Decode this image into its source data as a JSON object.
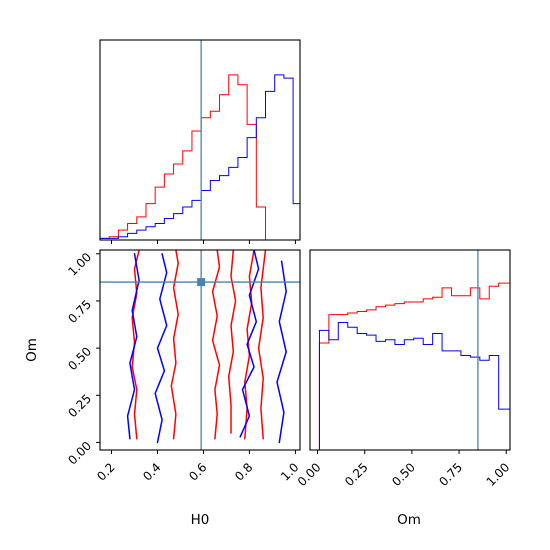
{
  "chart_data": {
    "type": "corner",
    "parameters": [
      "H0",
      "Om"
    ],
    "axis_labels": {
      "x_bottom_left": "H0",
      "x_bottom_right": "Om",
      "y_left": "Om"
    },
    "ranges": {
      "H0": [
        0.15,
        1.02
      ],
      "Om": [
        -0.04,
        1.02
      ]
    },
    "ticks": {
      "H0": [
        "0.2",
        "0.4",
        "0.6",
        "0.8",
        "1.0"
      ],
      "Om": [
        "0.00",
        "0.25",
        "0.50",
        "0.75",
        "1.00"
      ]
    },
    "truth": {
      "H0": 0.59,
      "Om": 0.85
    },
    "colors": {
      "series_a": "#ff0000",
      "series_b": "#0000ff",
      "truth": "#4682b4"
    },
    "series": [
      {
        "color": "#ff0000",
        "hist_H0": {
          "edges": [
            0.15,
            0.19,
            0.23,
            0.27,
            0.31,
            0.35,
            0.39,
            0.43,
            0.47,
            0.51,
            0.55,
            0.59,
            0.63,
            0.67,
            0.71,
            0.75,
            0.79,
            0.83,
            0.87,
            0.91,
            0.95,
            0.99,
            1.02
          ],
          "counts": [
            0.01,
            0.02,
            0.06,
            0.1,
            0.14,
            0.22,
            0.32,
            0.4,
            0.46,
            0.54,
            0.66,
            0.74,
            0.78,
            0.88,
            1.0,
            0.94,
            0.7,
            0.2,
            0.0,
            0.0,
            0.0,
            0.0
          ]
        },
        "hist_Om": {
          "edges": [
            -0.04,
            0.01,
            0.06,
            0.11,
            0.16,
            0.21,
            0.26,
            0.31,
            0.36,
            0.41,
            0.46,
            0.51,
            0.56,
            0.61,
            0.66,
            0.71,
            0.76,
            0.81,
            0.86,
            0.91,
            0.96,
            1.02
          ],
          "counts": [
            0.0,
            0.68,
            0.86,
            0.86,
            0.87,
            0.88,
            0.89,
            0.91,
            0.92,
            0.93,
            0.94,
            0.94,
            0.96,
            0.97,
            1.03,
            0.98,
            0.98,
            1.03,
            0.96,
            1.04,
            1.06
          ]
        }
      },
      {
        "color": "#0000ff",
        "hist_H0": {
          "edges": [
            0.15,
            0.19,
            0.23,
            0.27,
            0.31,
            0.35,
            0.39,
            0.43,
            0.47,
            0.51,
            0.55,
            0.59,
            0.63,
            0.67,
            0.71,
            0.75,
            0.79,
            0.83,
            0.87,
            0.91,
            0.95,
            0.99,
            1.02
          ],
          "counts": [
            0.01,
            0.01,
            0.02,
            0.04,
            0.06,
            0.08,
            0.1,
            0.13,
            0.16,
            0.2,
            0.24,
            0.3,
            0.36,
            0.39,
            0.44,
            0.5,
            0.62,
            0.74,
            0.9,
            1.0,
            0.98,
            0.22
          ]
        },
        "hist_Om": {
          "edges": [
            -0.04,
            0.01,
            0.06,
            0.11,
            0.16,
            0.21,
            0.26,
            0.31,
            0.36,
            0.41,
            0.46,
            0.51,
            0.56,
            0.61,
            0.66,
            0.71,
            0.76,
            0.81,
            0.86,
            0.91,
            0.96,
            1.02
          ],
          "counts": [
            0.0,
            0.76,
            0.7,
            0.81,
            0.78,
            0.74,
            0.73,
            0.69,
            0.7,
            0.67,
            0.7,
            0.71,
            0.67,
            0.74,
            0.63,
            0.63,
            0.6,
            0.59,
            0.57,
            0.6,
            0.26
          ]
        }
      }
    ],
    "contours": [
      {
        "color": "#ff0000",
        "points": [
          [
            0.31,
            0.02
          ],
          [
            0.3,
            0.15
          ],
          [
            0.31,
            0.28
          ],
          [
            0.29,
            0.4
          ],
          [
            0.3,
            0.53
          ],
          [
            0.29,
            0.66
          ],
          [
            0.31,
            0.79
          ],
          [
            0.3,
            0.92
          ],
          [
            0.32,
            1.02
          ]
        ]
      },
      {
        "color": "#ff0000",
        "points": [
          [
            0.47,
            0.02
          ],
          [
            0.48,
            0.15
          ],
          [
            0.46,
            0.3
          ],
          [
            0.48,
            0.42
          ],
          [
            0.47,
            0.55
          ],
          [
            0.49,
            0.68
          ],
          [
            0.47,
            0.82
          ],
          [
            0.49,
            0.95
          ],
          [
            0.48,
            1.02
          ]
        ]
      },
      {
        "color": "#ff0000",
        "points": [
          [
            0.65,
            0.02
          ],
          [
            0.66,
            0.15
          ],
          [
            0.65,
            0.28
          ],
          [
            0.67,
            0.41
          ],
          [
            0.64,
            0.54
          ],
          [
            0.66,
            0.67
          ],
          [
            0.64,
            0.8
          ],
          [
            0.67,
            0.93
          ],
          [
            0.66,
            1.02
          ]
        ]
      },
      {
        "color": "#ff0000",
        "points": [
          [
            0.72,
            0.05
          ],
          [
            0.72,
            0.2
          ],
          [
            0.71,
            0.35
          ],
          [
            0.73,
            0.48
          ],
          [
            0.72,
            0.62
          ],
          [
            0.74,
            0.75
          ],
          [
            0.72,
            0.88
          ],
          [
            0.73,
            1.02
          ]
        ]
      },
      {
        "color": "#ff0000",
        "points": [
          [
            0.78,
            0.02
          ],
          [
            0.79,
            0.18
          ],
          [
            0.78,
            0.32
          ],
          [
            0.8,
            0.46
          ],
          [
            0.79,
            0.6
          ],
          [
            0.81,
            0.74
          ],
          [
            0.8,
            0.88
          ],
          [
            0.82,
            1.02
          ]
        ]
      },
      {
        "color": "#ff0000",
        "points": [
          [
            0.86,
            0.02
          ],
          [
            0.85,
            0.18
          ],
          [
            0.86,
            0.34
          ],
          [
            0.84,
            0.5
          ],
          [
            0.86,
            0.66
          ],
          [
            0.85,
            0.82
          ],
          [
            0.87,
            1.02
          ]
        ]
      },
      {
        "color": "#0000ff",
        "points": [
          [
            0.28,
            0.02
          ],
          [
            0.27,
            0.14
          ],
          [
            0.3,
            0.28
          ],
          [
            0.28,
            0.42
          ],
          [
            0.31,
            0.56
          ],
          [
            0.29,
            0.7
          ],
          [
            0.32,
            0.86
          ],
          [
            0.3,
            1.0
          ]
        ]
      },
      {
        "color": "#0000ff",
        "points": [
          [
            0.4,
            0.0
          ],
          [
            0.42,
            0.12
          ],
          [
            0.39,
            0.26
          ],
          [
            0.43,
            0.38
          ],
          [
            0.4,
            0.5
          ],
          [
            0.44,
            0.62
          ],
          [
            0.41,
            0.76
          ],
          [
            0.44,
            0.9
          ],
          [
            0.42,
            1.0
          ]
        ]
      },
      {
        "color": "#0000ff",
        "points": [
          [
            0.76,
            0.03
          ],
          [
            0.8,
            0.14
          ],
          [
            0.77,
            0.28
          ],
          [
            0.82,
            0.4
          ],
          [
            0.79,
            0.52
          ],
          [
            0.83,
            0.64
          ],
          [
            0.8,
            0.78
          ],
          [
            0.84,
            0.92
          ],
          [
            0.82,
            1.02
          ]
        ]
      },
      {
        "color": "#0000ff",
        "points": [
          [
            0.93,
            0.0
          ],
          [
            0.95,
            0.16
          ],
          [
            0.92,
            0.32
          ],
          [
            0.96,
            0.48
          ],
          [
            0.93,
            0.64
          ],
          [
            0.96,
            0.8
          ],
          [
            0.94,
            0.96
          ]
        ]
      }
    ]
  }
}
